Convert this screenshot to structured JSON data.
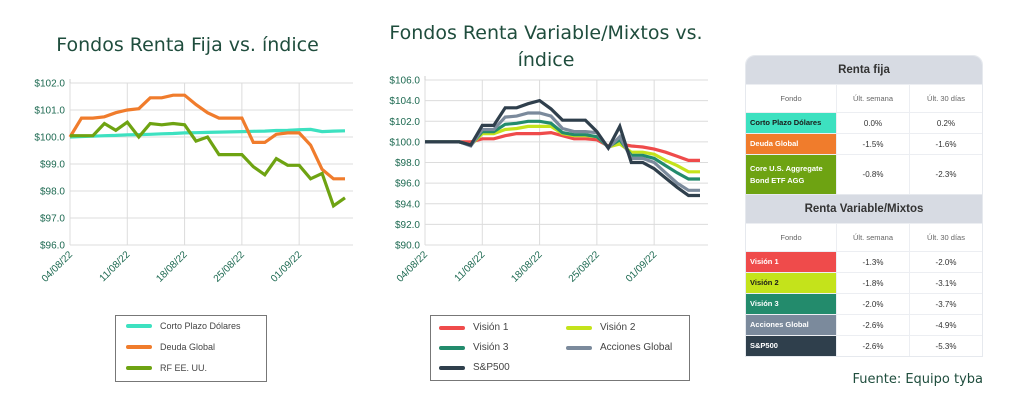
{
  "source": "Fuente: Equipo tyba",
  "chart_data": [
    {
      "type": "line",
      "title": "Fondos Renta Fija vs. índice",
      "x": [
        "04/08/22",
        "05/08/22",
        "08/08/22",
        "09/08/22",
        "10/08/22",
        "11/08/22",
        "12/08/22",
        "15/08/22",
        "16/08/22",
        "17/08/22",
        "18/08/22",
        "19/08/22",
        "22/08/22",
        "23/08/22",
        "24/08/22",
        "25/08/22",
        "26/08/22",
        "29/08/22",
        "30/08/22",
        "31/08/22",
        "01/09/22",
        "02/09/22",
        "05/09/22",
        "06/09/22",
        "07/09/22"
      ],
      "xticks": [
        "04/08/22",
        "11/08/22",
        "18/08/22",
        "25/08/22",
        "01/09/22"
      ],
      "ylim": [
        96.0,
        102.0
      ],
      "yticks": [
        "$96.0",
        "$97.0",
        "$98.0",
        "$99.0",
        "$100.0",
        "$101.0",
        "$102.0"
      ],
      "series": [
        {
          "name": "Corto Plazo Dólares",
          "color": "#3de1c0",
          "values": [
            100.0,
            100.02,
            100.03,
            100.05,
            100.06,
            100.08,
            100.09,
            100.1,
            100.12,
            100.13,
            100.15,
            100.16,
            100.17,
            100.18,
            100.19,
            100.2,
            100.21,
            100.22,
            100.24,
            100.25,
            100.27,
            100.28,
            100.2,
            100.22,
            100.23
          ]
        },
        {
          "name": "Deuda Global",
          "color": "#f07c2c",
          "values": [
            100.0,
            100.7,
            100.7,
            100.75,
            100.9,
            101.0,
            101.05,
            101.45,
            101.45,
            101.55,
            101.55,
            101.2,
            100.9,
            100.7,
            100.7,
            100.7,
            99.8,
            99.8,
            100.1,
            100.15,
            100.15,
            99.7,
            98.8,
            98.45,
            98.45
          ]
        },
        {
          "name": "RF EE. UU.",
          "color": "#6ea312",
          "values": [
            100.05,
            100.05,
            100.05,
            100.5,
            100.25,
            100.55,
            100.0,
            100.5,
            100.45,
            100.5,
            100.45,
            99.85,
            100.0,
            99.35,
            99.35,
            99.35,
            98.9,
            98.6,
            99.2,
            98.95,
            98.95,
            98.45,
            98.65,
            97.45,
            97.75
          ]
        }
      ]
    },
    {
      "type": "line",
      "title": "Fondos Renta Variable/Mixtos vs. índice",
      "x": [
        "04/08/22",
        "05/08/22",
        "08/08/22",
        "09/08/22",
        "10/08/22",
        "11/08/22",
        "12/08/22",
        "15/08/22",
        "16/08/22",
        "17/08/22",
        "18/08/22",
        "19/08/22",
        "22/08/22",
        "23/08/22",
        "24/08/22",
        "25/08/22",
        "26/08/22",
        "29/08/22",
        "30/08/22",
        "31/08/22",
        "01/09/22",
        "02/09/22",
        "05/09/22",
        "06/09/22",
        "07/09/22"
      ],
      "xticks": [
        "04/08/22",
        "11/08/22",
        "18/08/22",
        "25/08/22",
        "01/09/22"
      ],
      "ylim": [
        90.0,
        106.0
      ],
      "yticks": [
        "$90.0",
        "$92.0",
        "$94.0",
        "$96.0",
        "$98.0",
        "$100.0",
        "$102.0",
        "$104.0",
        "$106.0"
      ],
      "series": [
        {
          "name": "Visión 1",
          "color": "#ef4b4b",
          "values": [
            100.0,
            100.0,
            100.0,
            100.0,
            100.0,
            100.3,
            100.3,
            100.6,
            100.8,
            100.8,
            100.8,
            100.9,
            100.6,
            100.3,
            100.3,
            100.2,
            99.6,
            99.8,
            99.6,
            99.5,
            99.3,
            99.0,
            98.6,
            98.2,
            98.2
          ]
        },
        {
          "name": "Visión 2",
          "color": "#c4e31b",
          "values": [
            100.0,
            100.0,
            100.0,
            100.0,
            99.7,
            100.8,
            100.8,
            101.2,
            101.3,
            101.5,
            101.5,
            101.5,
            100.8,
            100.6,
            100.6,
            100.5,
            99.5,
            99.8,
            99.0,
            99.0,
            98.8,
            98.2,
            97.7,
            97.1,
            97.1
          ]
        },
        {
          "name": "Visión 3",
          "color": "#238b6c",
          "values": [
            100.0,
            100.0,
            100.0,
            100.0,
            99.7,
            101.0,
            101.0,
            101.7,
            101.8,
            102.0,
            102.0,
            101.8,
            100.9,
            100.7,
            100.7,
            100.5,
            99.5,
            100.2,
            98.7,
            98.7,
            98.4,
            97.7,
            97.0,
            96.4,
            96.4
          ]
        },
        {
          "name": "Acciones Global",
          "color": "#7b8a9c",
          "values": [
            100.0,
            100.0,
            100.0,
            100.0,
            99.6,
            101.2,
            101.2,
            102.4,
            102.5,
            102.8,
            102.8,
            102.5,
            101.3,
            101.0,
            101.0,
            100.9,
            99.4,
            100.5,
            98.4,
            98.4,
            98.0,
            97.0,
            96.0,
            95.3,
            95.3
          ]
        },
        {
          "name": "S&P500",
          "color": "#2f3f4c",
          "values": [
            100.0,
            100.0,
            100.0,
            100.0,
            99.7,
            101.6,
            101.6,
            103.3,
            103.3,
            103.7,
            104.0,
            103.2,
            102.1,
            102.1,
            102.1,
            101.0,
            99.4,
            101.5,
            98.0,
            98.0,
            97.4,
            96.5,
            95.6,
            94.8,
            94.8
          ]
        }
      ]
    }
  ],
  "tables": [
    {
      "title": "Renta fija",
      "headers": [
        "Fondo",
        "Últ. semana",
        "Últ. 30 días"
      ],
      "rows": [
        {
          "name": "Corto Plazo Dólares",
          "color": "#3de1c0",
          "text_color": "#1a1a1a",
          "week": "0.0%",
          "month": "0.2%"
        },
        {
          "name": "Deuda Global",
          "color": "#f07c2c",
          "text_color": "#ffffff",
          "week": "-1.5%",
          "month": "-1.6%"
        },
        {
          "name": "Core U.S. Aggregate Bond ETF AGG",
          "color": "#6ea312",
          "text_color": "#ffffff",
          "week": "-0.8%",
          "month": "-2.3%"
        }
      ]
    },
    {
      "title": "Renta Variable/Mixtos",
      "headers": [
        "Fondo",
        "Últ. semana",
        "Últ. 30 días"
      ],
      "rows": [
        {
          "name": "Visión 1",
          "color": "#ef4b4b",
          "text_color": "#ffffff",
          "week": "-1.3%",
          "month": "-2.0%"
        },
        {
          "name": "Visión 2",
          "color": "#c4e31b",
          "text_color": "#1a1a1a",
          "week": "-1.8%",
          "month": "-3.1%"
        },
        {
          "name": "Visión 3",
          "color": "#238b6c",
          "text_color": "#ffffff",
          "week": "-2.0%",
          "month": "-3.7%"
        },
        {
          "name": "Acciones Global",
          "color": "#7b8a9c",
          "text_color": "#ffffff",
          "week": "-2.6%",
          "month": "-4.9%"
        },
        {
          "name": "S&P500",
          "color": "#2f3f4c",
          "text_color": "#ffffff",
          "week": "-2.6%",
          "month": "-5.3%"
        }
      ]
    }
  ]
}
